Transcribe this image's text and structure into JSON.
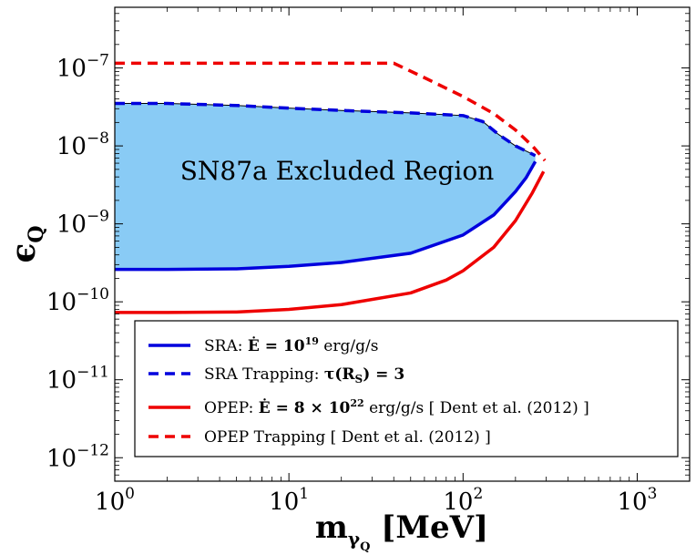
{
  "chart_data": {
    "type": "line",
    "x_scale": "log",
    "y_scale": "log",
    "xlim": [
      1,
      2000
    ],
    "ylim": [
      5e-13,
      6e-07
    ],
    "xlabel": {
      "main": "m",
      "sub1": "γ",
      "sub2": "Q",
      "unit": " [MeV]"
    },
    "ylabel": {
      "main": "ϵ",
      "sub": "Q"
    },
    "x_ticks": [
      {
        "value": 1,
        "base": "10",
        "exp": "0"
      },
      {
        "value": 10,
        "base": "10",
        "exp": "1"
      },
      {
        "value": 100,
        "base": "10",
        "exp": "2"
      },
      {
        "value": 1000,
        "base": "10",
        "exp": "3"
      }
    ],
    "y_ticks": [
      {
        "value": 1e-12,
        "base": "10",
        "exp": "−12"
      },
      {
        "value": 1e-11,
        "base": "10",
        "exp": "−11"
      },
      {
        "value": 1e-10,
        "base": "10",
        "exp": "−10"
      },
      {
        "value": 1e-09,
        "base": "10",
        "exp": "−9"
      },
      {
        "value": 1e-08,
        "base": "10",
        "exp": "−8"
      },
      {
        "value": 1e-07,
        "base": "10",
        "exp": "−7"
      }
    ],
    "region_label": "SN87a Excluded Region",
    "region_color": "#89cbf5",
    "series": [
      {
        "name": "SRA",
        "color": "#0000dd",
        "dash": "solid",
        "x": [
          1,
          2,
          5,
          10,
          20,
          50,
          100,
          150,
          200,
          230,
          260
        ],
        "y": [
          2.6e-10,
          2.6e-10,
          2.65e-10,
          2.85e-10,
          3.2e-10,
          4.2e-10,
          7.2e-10,
          1.3e-09,
          2.6e-09,
          3.9e-09,
          6.3e-09
        ]
      },
      {
        "name": "SRA Trapping",
        "color": "#0000dd",
        "dash": "dashed",
        "x": [
          1,
          2,
          5,
          10,
          20,
          50,
          100,
          130,
          160,
          200,
          240,
          260
        ],
        "y": [
          3.5e-08,
          3.5e-08,
          3.3e-08,
          3.05e-08,
          2.85e-08,
          2.65e-08,
          2.45e-08,
          2.05e-08,
          1.4e-08,
          1e-08,
          8.2e-09,
          7.5e-09
        ]
      },
      {
        "name": "OPEP",
        "color": "#ee0000",
        "dash": "solid",
        "x": [
          1,
          2,
          5,
          10,
          20,
          50,
          80,
          100,
          150,
          200,
          250,
          290
        ],
        "y": [
          7.3e-11,
          7.3e-11,
          7.4e-11,
          8e-11,
          9.2e-11,
          1.3e-10,
          1.9e-10,
          2.5e-10,
          5e-10,
          1.1e-09,
          2.5e-09,
          4.7e-09
        ]
      },
      {
        "name": "OPEP Trapping",
        "color": "#ee0000",
        "dash": "dashed",
        "x": [
          1,
          10,
          40,
          60,
          100,
          150,
          200,
          250,
          280,
          295
        ],
        "y": [
          1.15e-07,
          1.15e-07,
          1.15e-07,
          7.5e-08,
          4.3e-08,
          2.6e-08,
          1.6e-08,
          1e-08,
          7.5e-09,
          6.5e-09
        ]
      }
    ],
    "legend": {
      "position": "lower-center",
      "items": [
        {
          "label": "SRA: Ė = 10¹⁹ erg/g/s",
          "prefix": "SRA: ",
          "mid": "Ė =  ",
          "base": "10",
          "exp": "19",
          "suffix": " erg/g/s",
          "color": "#0000dd",
          "dash": "solid"
        },
        {
          "label": "SRA Trapping: τ(R_S) = 3",
          "prefix": "SRA Trapping: ",
          "mid": "τ(R",
          "sub": "S",
          "suffix": ")  =  3",
          "color": "#0000dd",
          "dash": "dashed"
        },
        {
          "label": "OPEP: Ė = 8 × 10²² erg/g/s [ Dent et al. (2012) ]",
          "prefix": "OPEP: ",
          "mid": "Ė =  8 × ",
          "base": "10",
          "exp": "22",
          "suffix": " erg/g/s [ Dent et al. (2012) ]",
          "color": "#ee0000",
          "dash": "solid"
        },
        {
          "label": "OPEP Trapping [ Dent et al. (2012) ]",
          "prefix": "OPEP Trapping [ Dent et al. (2012) ]",
          "color": "#ee0000",
          "dash": "dashed"
        }
      ]
    }
  }
}
